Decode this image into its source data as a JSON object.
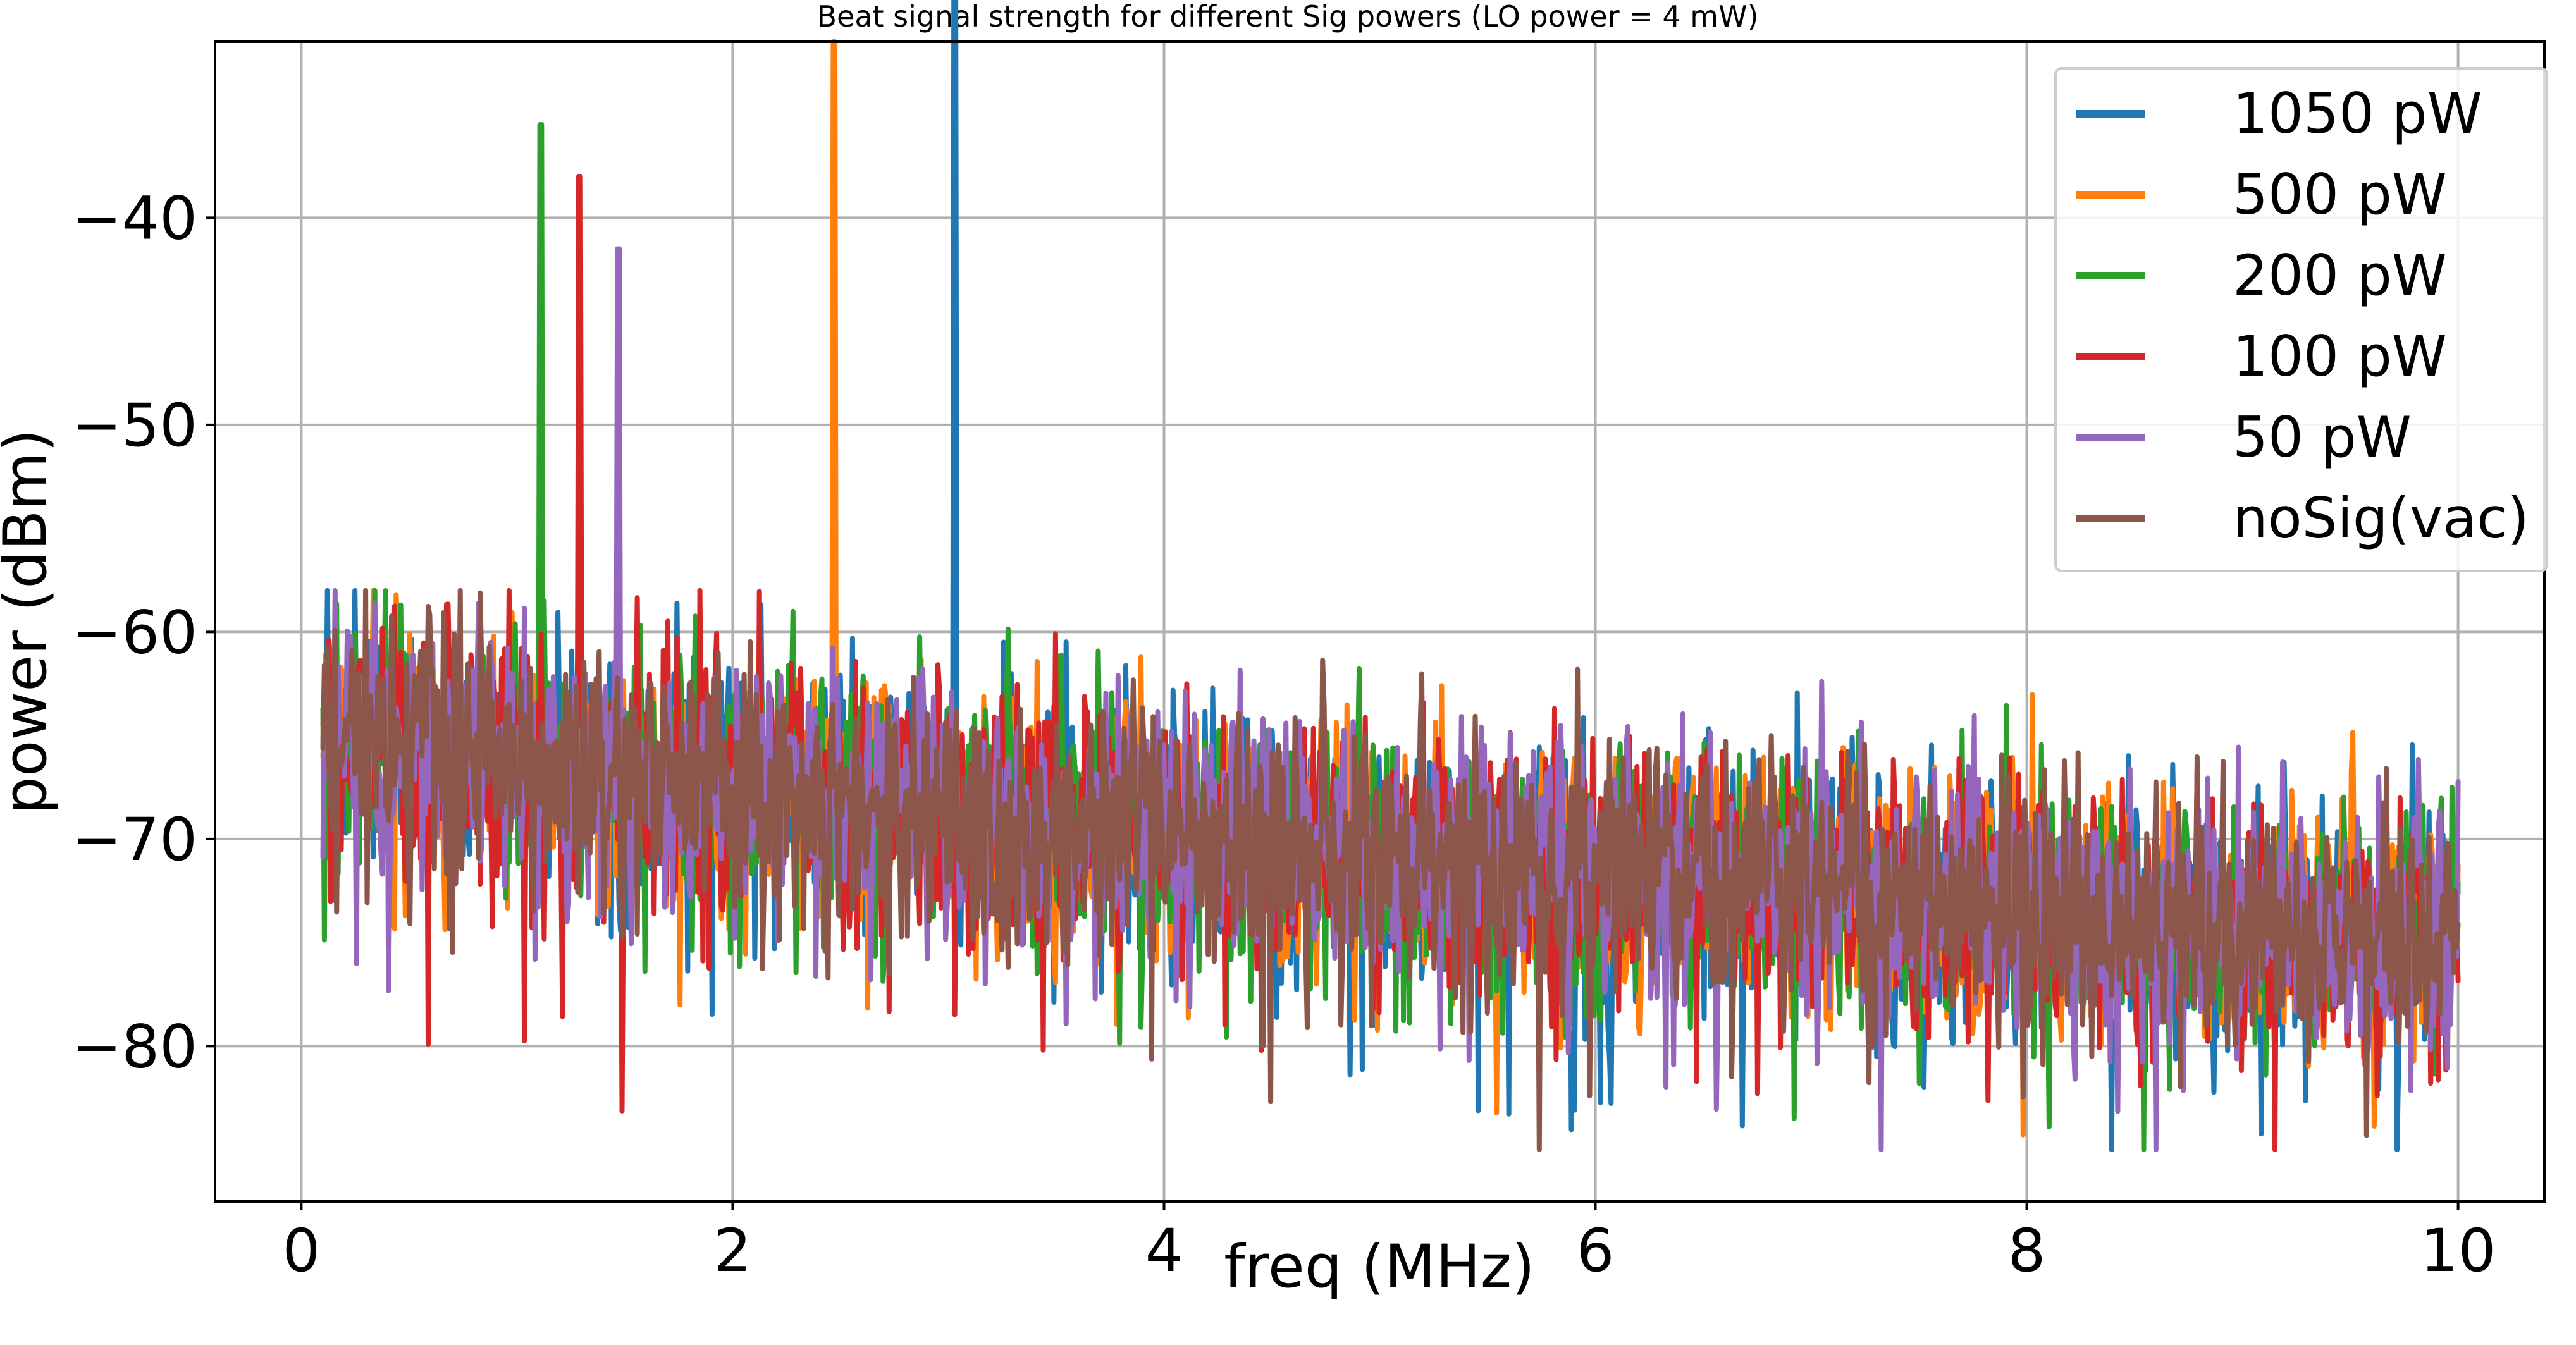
{
  "chart_data": {
    "type": "line",
    "title": "Beat signal strength for different Sig powers (LO power = 4 mW)",
    "xlabel": "freq (MHz)",
    "ylabel": "power (dBm)",
    "xlim": [
      -0.4,
      10.4
    ],
    "ylim": [
      -87.5,
      -31.5
    ],
    "xticks": [
      0,
      2,
      4,
      6,
      8,
      10
    ],
    "xtick_labels": [
      "0",
      "2",
      "4",
      "6",
      "8",
      "10"
    ],
    "yticks": [
      -80,
      -70,
      -60,
      -50,
      -40
    ],
    "ytick_labels": [
      "−80",
      "−70",
      "−60",
      "−50",
      "−40"
    ],
    "grid": true,
    "legend_position": "top-right",
    "series": [
      {
        "name": "1050 pW",
        "color": "#1f77b4",
        "peak_x": 3.03,
        "peak_y": -34
      },
      {
        "name": "500 pW",
        "color": "#ff7f0e",
        "peak_x": 2.47,
        "peak_y": -37.5
      },
      {
        "name": "200 pW",
        "color": "#2ca02c",
        "peak_x": 1.11,
        "peak_y": -41.5
      },
      {
        "name": "100 pW",
        "color": "#d62728",
        "peak_x": 1.29,
        "peak_y": -44
      },
      {
        "name": "50 pW",
        "color": "#9467bd",
        "peak_x": 1.47,
        "peak_y": -47.5
      },
      {
        "name": "noSig(vac)",
        "color": "#8c564b",
        "peak_x": null,
        "peak_y": null
      }
    ],
    "noise_floor": {
      "x_range": [
        0.1,
        10.0
      ],
      "mean_start": -64.5,
      "mean_end": -75,
      "spread": 3.5,
      "min_outliers": -85
    }
  }
}
